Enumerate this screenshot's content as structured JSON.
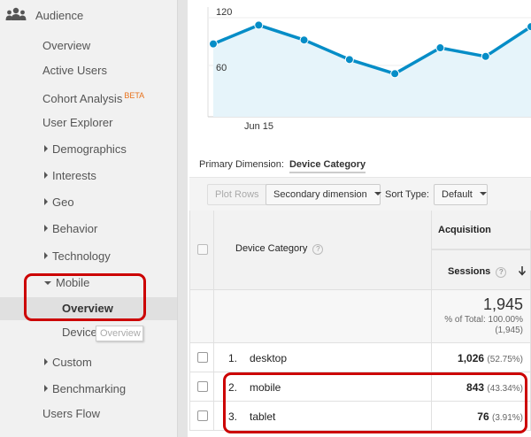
{
  "sidebar": {
    "header": {
      "label": "Audience",
      "icon": "people-icon"
    },
    "items": [
      {
        "label": "Overview"
      },
      {
        "label": "Active Users"
      },
      {
        "label": "Cohort Analysis",
        "badge": "BETA"
      },
      {
        "label": "User Explorer"
      },
      {
        "label": "Demographics",
        "expandable": true
      },
      {
        "label": "Interests",
        "expandable": true
      },
      {
        "label": "Geo",
        "expandable": true
      },
      {
        "label": "Behavior",
        "expandable": true
      },
      {
        "label": "Technology",
        "expandable": true
      },
      {
        "label": "Mobile",
        "expanded": true
      },
      {
        "label": "Overview",
        "active": true
      },
      {
        "label": "Devices"
      },
      {
        "label": "Custom",
        "expandable": true
      },
      {
        "label": "Benchmarking",
        "expandable": true
      },
      {
        "label": "Users Flow"
      }
    ],
    "tooltip": "Overview"
  },
  "chart_data": {
    "type": "area",
    "ytick_labels": [
      "120",
      "60"
    ],
    "xtick_labels": [
      "Jun 15"
    ],
    "ylim": [
      0,
      140
    ],
    "values": [
      93,
      117,
      98,
      73,
      55,
      88,
      77,
      115
    ],
    "line_color": "#058dc7",
    "fill_color": "#e6f4fa",
    "grid": true
  },
  "primary_dimension": {
    "label": "Primary Dimension:",
    "value": "Device Category"
  },
  "toolbar": {
    "plot_rows": "Plot Rows",
    "secondary_dimension": "Secondary dimension",
    "sort_type_label": "Sort Type:",
    "sort_type_value": "Default"
  },
  "table": {
    "dimension_header": "Device Category",
    "group_header": "Acquisition",
    "metric_header": "Sessions",
    "totals": {
      "value": "1,945",
      "pct_line": "% of Total: 100.00%",
      "abs_line": "(1,945)"
    },
    "rows": [
      {
        "index": "1.",
        "category": "desktop",
        "sessions": "1,026",
        "pct": "(52.75%)"
      },
      {
        "index": "2.",
        "category": "mobile",
        "sessions": "843",
        "pct": "(43.34%)"
      },
      {
        "index": "3.",
        "category": "tablet",
        "sessions": "76",
        "pct": "(3.91%)"
      }
    ]
  },
  "colors": {
    "accent_line": "#058dc7",
    "highlight_red": "#cc0000"
  }
}
